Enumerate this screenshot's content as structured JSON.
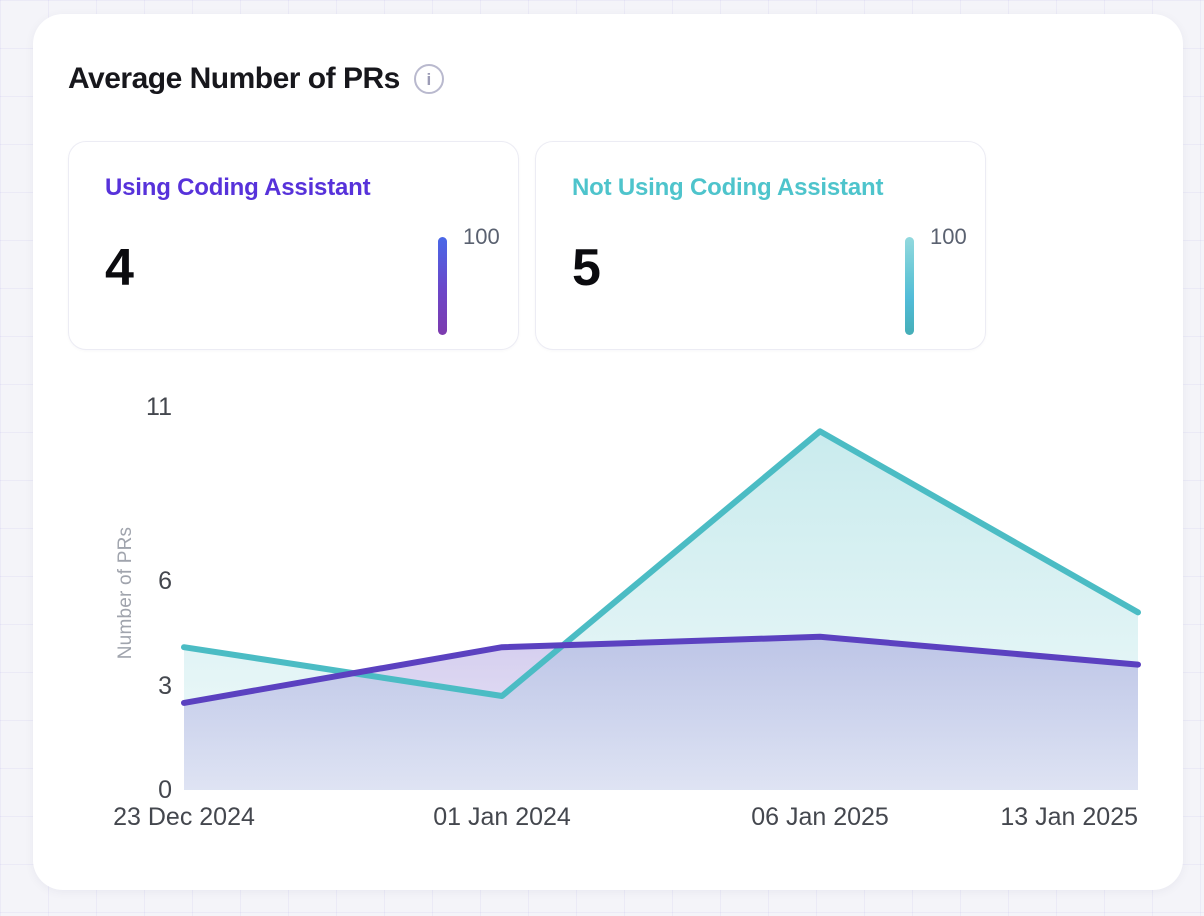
{
  "header": {
    "title": "Average Number of PRs"
  },
  "icons": {
    "info_glyph": "i"
  },
  "stat_cards": [
    {
      "label": "Using Coding Assistant",
      "value": "4",
      "gauge_label": "100",
      "accent": "#5732DA",
      "gauge_gradient": [
        "#4968E8",
        "#6C46C8",
        "#7D3BAE"
      ]
    },
    {
      "label": "Not Using Coding Assistant",
      "value": "5",
      "gauge_label": "100",
      "accent": "#4EC4CC",
      "gauge_gradient": [
        "#93D9DE",
        "#62C5D6",
        "#52BCD9",
        "#45AEB7"
      ]
    }
  ],
  "chart_data": {
    "type": "area",
    "x": [
      "23 Dec 2024",
      "01 Jan 2024",
      "06 Jan 2025",
      "13 Jan 2025"
    ],
    "series": [
      {
        "name": "Not Using Coding Assistant",
        "color": "#4BBCC4",
        "fill_opacity": [
          0.3,
          0.08
        ],
        "values": [
          4.1,
          2.7,
          10.3,
          5.1
        ]
      },
      {
        "name": "Using Coding Assistant",
        "color": "#5B41C0",
        "fill_opacity": [
          0.26,
          0.12
        ],
        "values": [
          2.5,
          4.1,
          4.4,
          3.6
        ]
      }
    ],
    "title": "Average Number of PRs",
    "xlabel": "",
    "ylabel": "Number of PRs",
    "yticks": [
      0,
      3,
      6,
      11
    ],
    "ylim": [
      0,
      11.2
    ],
    "grid": false,
    "legend_position": "none"
  },
  "colors": {
    "page_background": "#F4F4F9",
    "card_background": "#FFFFFF",
    "tick_text": "#44474E",
    "axis_name_text": "#A0A4AD",
    "gauge_label_text": "#5A6170"
  }
}
